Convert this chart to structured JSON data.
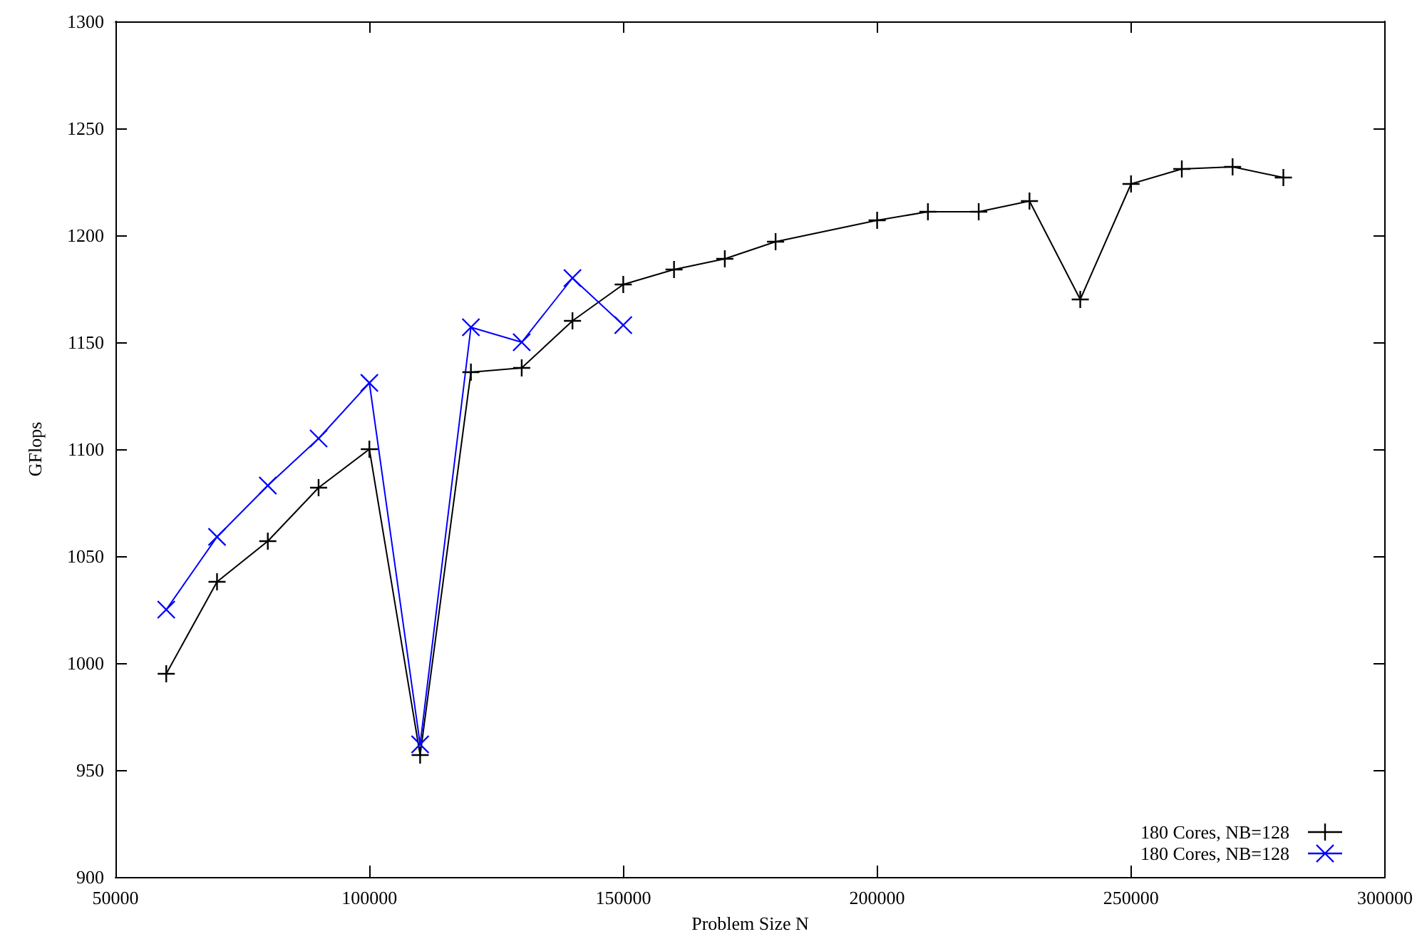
{
  "chart_data": {
    "type": "line",
    "xlabel": "Problem Size N",
    "ylabel": "GFlops",
    "xlim": [
      50000,
      300000
    ],
    "xticks": [
      50000,
      100000,
      150000,
      200000,
      250000,
      300000
    ],
    "ylim": [
      900,
      1300
    ],
    "yticks": [
      900,
      950,
      1000,
      1050,
      1100,
      1150,
      1200,
      1250,
      1300
    ],
    "grid": false,
    "legend": "bottom right",
    "series": [
      {
        "name": "180 Cores, NB=128",
        "color": "#000000",
        "marker": "plus",
        "x": [
          60000,
          70000,
          80000,
          90000,
          100000,
          110000,
          120000,
          130000,
          140000,
          150000,
          160000,
          170000,
          180000,
          200000,
          210000,
          220000,
          230000,
          240000,
          250000,
          260000,
          270000,
          280000
        ],
        "values": [
          995,
          1038,
          1057,
          1082,
          1100,
          957,
          1136,
          1138,
          1160,
          1177,
          1184,
          1189,
          1197,
          1207,
          1211,
          1211,
          1216,
          1170,
          1224,
          1231,
          1232,
          1227
        ]
      },
      {
        "name": "180 Cores, NB=128",
        "color": "#0000ff",
        "marker": "cross",
        "x": [
          60000,
          70000,
          80000,
          90000,
          100000,
          110000,
          120000,
          130000,
          140000,
          150000
        ],
        "values": [
          1025,
          1059,
          1083,
          1105,
          1131,
          962,
          1157,
          1150,
          1180,
          1158
        ]
      }
    ]
  }
}
